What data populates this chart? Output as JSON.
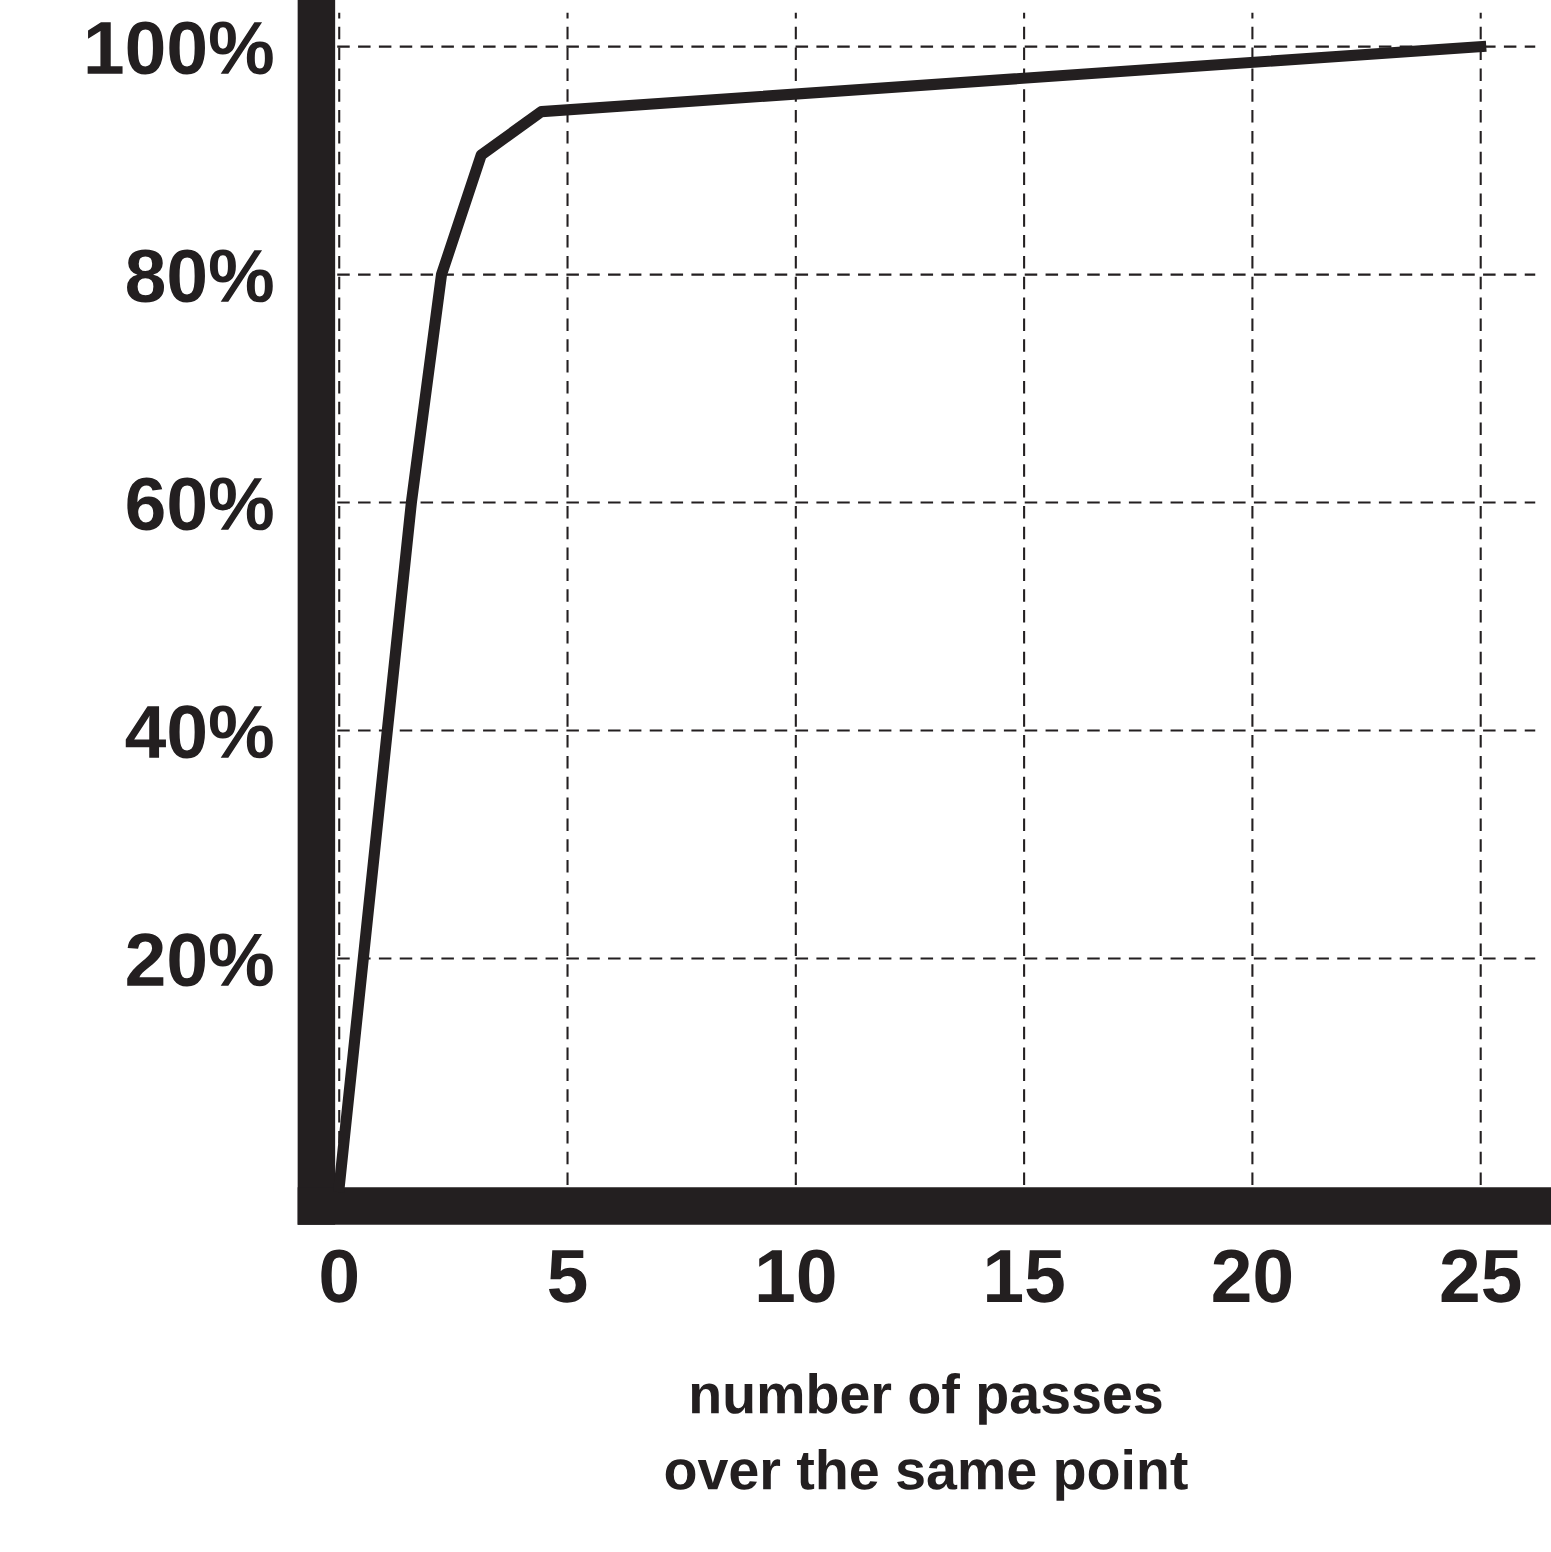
{
  "chart_data": {
    "type": "line",
    "xlabel": "number of passes\nover the same point",
    "series": [
      {
        "color": "#231f20",
        "x": [
          0,
          1.58,
          2.24,
          3.11,
          4.43,
          25
        ],
        "values": [
          0,
          60,
          80,
          90.5,
          94.3,
          100
        ]
      }
    ],
    "xlim": [
      -0.5,
      26.2
    ],
    "ylim": [
      -1.7,
      103
    ],
    "xticks": [
      0,
      5,
      10,
      15,
      20,
      25
    ],
    "yticks": [
      {
        "value": 20,
        "label": "20%"
      },
      {
        "value": 40,
        "label": "40%"
      },
      {
        "value": 60,
        "label": "60%"
      },
      {
        "value": 80,
        "label": "80%"
      },
      {
        "value": 100,
        "label": "100%"
      }
    ],
    "grid": true,
    "marker": "none",
    "line_style": "solid"
  }
}
